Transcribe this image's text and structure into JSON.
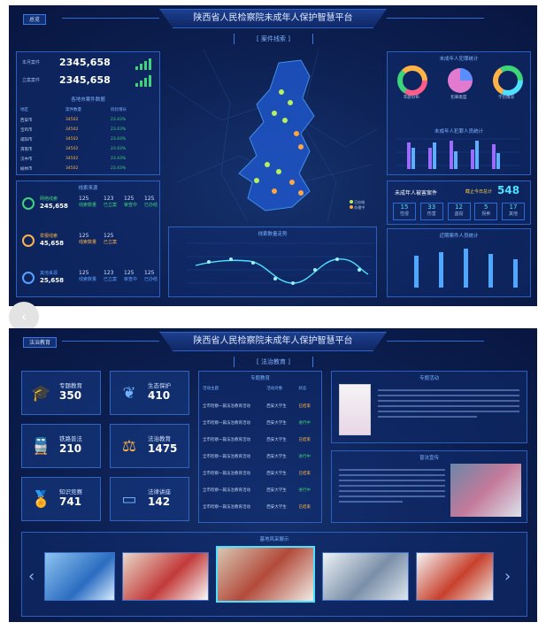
{
  "screen1": {
    "tag": "总览",
    "title": "陕西省人民检察院未成年人保护智慧平台",
    "subtitle": "[ 案件线索 ]",
    "stats": [
      {
        "label": "本月案件",
        "value": "2345,658"
      },
      {
        "label": "立案案件",
        "value": "2345,658"
      }
    ],
    "rank_table": {
      "title": "各地市案件数据",
      "headers": [
        "地区",
        "案件数量",
        "同比增长"
      ],
      "rows": [
        {
          "name": "西安市",
          "a": "34502",
          "b": "23.43%"
        },
        {
          "name": "宝鸡市",
          "a": "34502",
          "b": "23.43%"
        },
        {
          "name": "咸阳市",
          "a": "34502",
          "b": "23.43%"
        },
        {
          "name": "渭南市",
          "a": "34502",
          "b": "23.43%"
        },
        {
          "name": "汉中市",
          "a": "34502",
          "b": "23.43%"
        },
        {
          "name": "榆林市",
          "a": "34502",
          "b": "23.43%"
        }
      ]
    },
    "source_panel": {
      "title": "线索来源",
      "items": [
        {
          "label": "网络线索",
          "value": "245,658",
          "cells": [
            [
              "125",
              "线索数量"
            ],
            [
              "123",
              "已立案"
            ],
            [
              "125",
              "审查中"
            ],
            [
              "125",
              "已办结"
            ]
          ]
        },
        {
          "label": "举报线索",
          "value": "45,658",
          "cells": [
            [
              "125",
              "线索数量"
            ],
            [
              "125",
              "已立案"
            ]
          ]
        },
        {
          "label": "其他来源",
          "value": "25,658",
          "cells": [
            [
              "125",
              "线索数量"
            ],
            [
              "123",
              "已立案"
            ],
            [
              "125",
              "审查中"
            ],
            [
              "125",
              "已办结"
            ]
          ]
        }
      ]
    },
    "right_top": {
      "title": "未成年人犯罪统计",
      "donut_labels": [
        "年龄分布",
        "犯罪类型",
        "学历情况"
      ]
    },
    "right_bars_title": "未成年人犯罪人员统计",
    "case_total": {
      "label": "未成年人被害案件",
      "sub": "截止今日总计",
      "value": "548"
    },
    "case_cells": [
      {
        "v": "15",
        "l": "性侵"
      },
      {
        "v": "33",
        "l": "伤害"
      },
      {
        "v": "12",
        "l": "盗窃"
      },
      {
        "v": "5",
        "l": "拐卖"
      },
      {
        "v": "17",
        "l": "其他"
      }
    ],
    "right_bottom_title": "近期案件人员统计",
    "line_title": "线索数量走势",
    "map_legend": [
      "已办结",
      "办理中"
    ]
  },
  "screen2": {
    "tag": "法治教育",
    "title": "陕西省人民检察院未成年人保护智慧平台",
    "subtitle": "[ 法治教育 ]",
    "cards": [
      {
        "label": "专题教育",
        "value": "350",
        "icon": "graduation-cap-icon"
      },
      {
        "label": "生态保护",
        "value": "410",
        "icon": "leaf-shield-icon"
      },
      {
        "label": "铁路普法",
        "value": "210",
        "icon": "train-icon"
      },
      {
        "label": "法治教育",
        "value": "1475",
        "icon": "scales-icon"
      },
      {
        "label": "知识竞赛",
        "value": "741",
        "icon": "medal-icon"
      },
      {
        "label": "法律讲座",
        "value": "142",
        "icon": "monitor-icon"
      }
    ],
    "topic_table": {
      "title": "专题教育",
      "headers": [
        "活动主题",
        "活动对象",
        "状态"
      ],
      "rows": [
        {
          "a": "全市检察一篇法治教育活动",
          "b": "西安大学生",
          "c": "已结束"
        },
        {
          "a": "全市检察一篇法治教育活动",
          "b": "西安大学生",
          "c": "进行中"
        },
        {
          "a": "全市检察一篇法治教育活动",
          "b": "西安大学生",
          "c": "已结束"
        },
        {
          "a": "全市检察一篇法治教育活动",
          "b": "西安大学生",
          "c": "进行中"
        },
        {
          "a": "全市检察一篇法治教育活动",
          "b": "西安大学生",
          "c": "已结束"
        },
        {
          "a": "全市检察一篇法治教育活动",
          "b": "西安大学生",
          "c": "进行中"
        },
        {
          "a": "全市检察一篇法治教育活动",
          "b": "西安大学生",
          "c": "已结束"
        }
      ]
    },
    "activity": {
      "title": "专题活动"
    },
    "publicity": {
      "title": "普法宣传"
    },
    "gallery": {
      "title": "基地风采展示"
    }
  }
}
